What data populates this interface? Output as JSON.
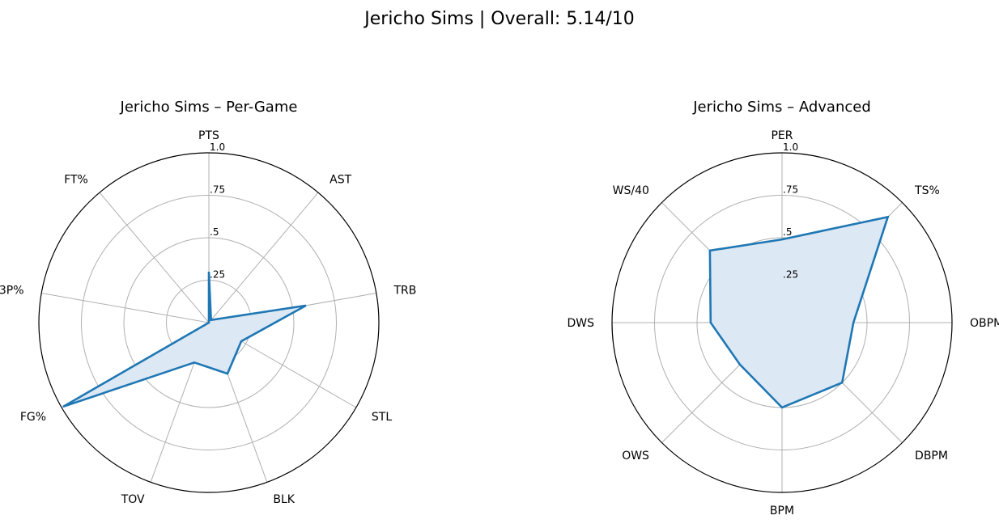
{
  "figure": {
    "title": "Jericho Sims | Overall: 5.14/10"
  },
  "style": {
    "line_color": "#1f77b4",
    "fill_color": "#dce8f4",
    "grid_color": "#b0b0b0",
    "frame_color": "#000000"
  },
  "chart_data": [
    {
      "type": "radar",
      "title": "Jericho Sims – Per-Game",
      "categories": [
        "PTS",
        "AST",
        "TRB",
        "STL",
        "BLK",
        "TOV",
        "FG%",
        "3P%",
        "FT%"
      ],
      "values": [
        0.3,
        0.02,
        0.58,
        0.22,
        0.32,
        0.25,
        0.99,
        0.0,
        0.0
      ],
      "rlim": [
        0,
        1
      ],
      "rticks": [
        0.25,
        0.5,
        0.75,
        1.0
      ],
      "rtick_labels": [
        ".25",
        ".5",
        ".75",
        "1.0"
      ],
      "grid": true
    },
    {
      "type": "radar",
      "title": "Jericho Sims – Advanced",
      "categories": [
        "PER",
        "TS%",
        "OBPM",
        "DBPM",
        "BPM",
        "OWS",
        "DWS",
        "WS/40"
      ],
      "values": [
        0.49,
        0.88,
        0.42,
        0.5,
        0.5,
        0.35,
        0.42,
        0.6
      ],
      "rlim": [
        0,
        1
      ],
      "rticks": [
        0.25,
        0.5,
        0.75,
        1.0
      ],
      "rtick_labels": [
        ".25",
        ".5",
        ".75",
        "1.0"
      ],
      "grid": true
    }
  ]
}
